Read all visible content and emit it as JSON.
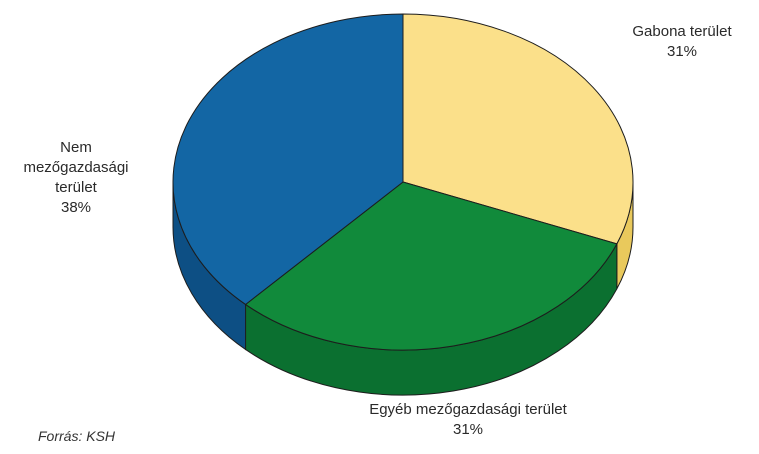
{
  "chart_data": {
    "type": "pie",
    "title": "",
    "slices": [
      {
        "label_lines": [
          "Gabona terület"
        ],
        "value": 31,
        "value_text": "31%",
        "color": "#fbe08a",
        "side_color": "#e9c95c"
      },
      {
        "label_lines": [
          "Egyéb mezőgazdasági terület"
        ],
        "value": 31,
        "value_text": "31%",
        "color": "#118a3b",
        "side_color": "#0b7030"
      },
      {
        "label_lines": [
          "Nem",
          "mezőgazdasági",
          "terület"
        ],
        "value": 38,
        "value_text": "38%",
        "color": "#1366a4",
        "side_color": "#0d4f84"
      }
    ],
    "style": "3d"
  },
  "source": "Forrás: KSH"
}
